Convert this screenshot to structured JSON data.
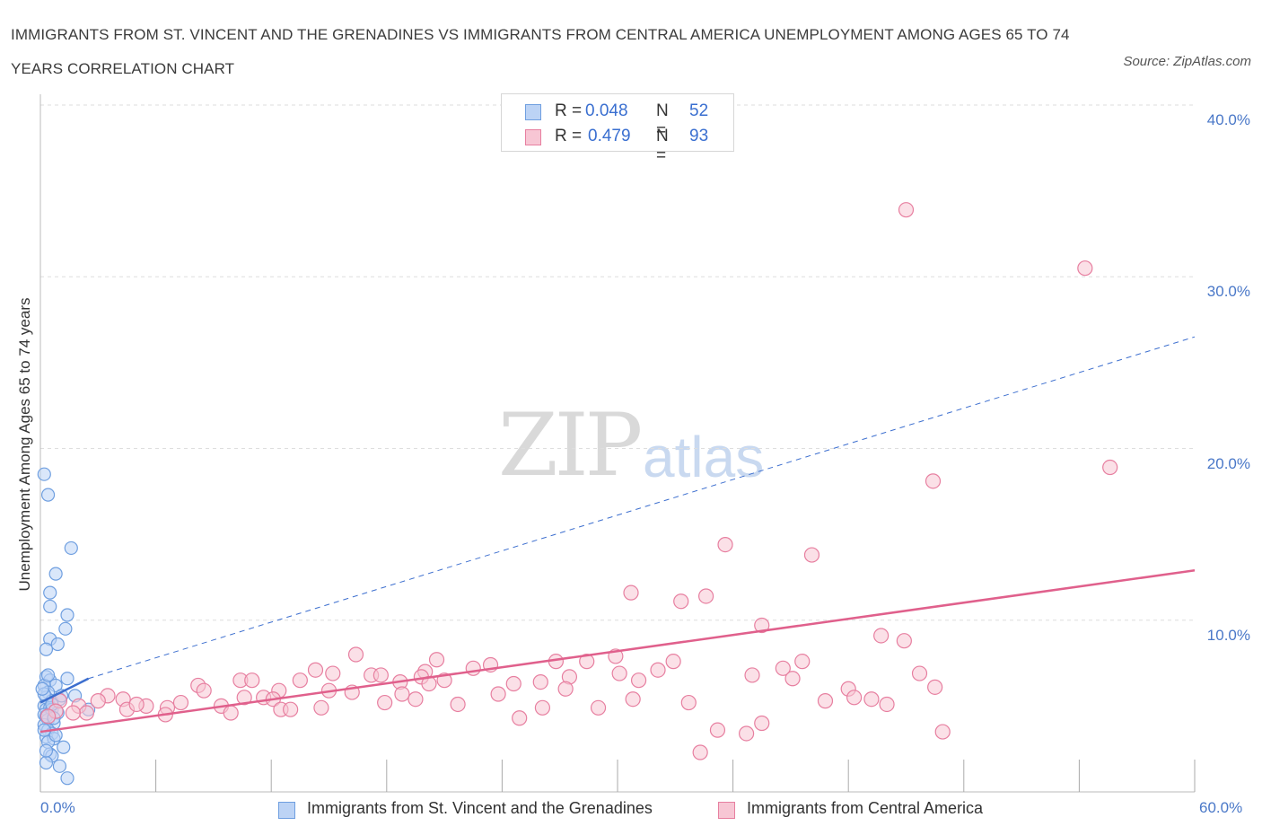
{
  "title": "IMMIGRANTS FROM ST. VINCENT AND THE GRENADINES VS IMMIGRANTS FROM CENTRAL AMERICA UNEMPLOYMENT AMONG AGES 65 TO 74 YEARS CORRELATION CHART",
  "source": "Source: ZipAtlas.com",
  "watermark": {
    "zip": "ZIP",
    "atlas": "atlas"
  },
  "colors": {
    "blue": "#6f9fe0",
    "blue_fill": "#bcd3f5",
    "pink": "#e77fa0",
    "pink_fill": "#f7c6d4",
    "blue_line": "#3d6fcf",
    "pink_line": "#e0608c",
    "grid": "#dedede",
    "tick_text": "#4a78c8"
  },
  "legend_top": [
    {
      "r_label": "R =",
      "r_value": "0.048",
      "n_label": "N =",
      "n_value": "52"
    },
    {
      "r_label": "R =",
      "r_value": "0.479",
      "n_label": "N =",
      "n_value": "93"
    }
  ],
  "legend_bottom": [
    "Immigrants from St. Vincent and the Grenadines",
    "Immigrants from Central America"
  ],
  "chart_data": {
    "type": "scatter",
    "title": "IMMIGRANTS FROM ST. VINCENT AND THE GRENADINES VS IMMIGRANTS FROM CENTRAL AMERICA UNEMPLOYMENT AMONG AGES 65 TO 74 YEARS CORRELATION CHART",
    "ylabel": "Unemployment Among Ages 65 to 74 years",
    "xlabel": "",
    "xlim": [
      0,
      60
    ],
    "ylim": [
      0,
      40
    ],
    "x_tick_labels": [
      "0.0%",
      "60.0%"
    ],
    "y_ticks": [
      10,
      20,
      30,
      40
    ],
    "y_tick_labels": [
      "10.0%",
      "20.0%",
      "30.0%",
      "40.0%"
    ],
    "grid": true,
    "legend_position": "top-center",
    "series": [
      {
        "name": "Immigrants from St. Vincent and the Grenadines",
        "r": 0.048,
        "n": 52,
        "trend": {
          "x": [
            0,
            2.5
          ],
          "y": [
            5.2,
            6.6
          ],
          "extended": {
            "x": [
              2.5,
              60
            ],
            "y": [
              6.6,
              26.5
            ]
          }
        },
        "points": [
          [
            0.2,
            18.5
          ],
          [
            0.4,
            17.3
          ],
          [
            1.6,
            14.2
          ],
          [
            0.8,
            12.7
          ],
          [
            0.5,
            11.6
          ],
          [
            0.5,
            10.8
          ],
          [
            1.4,
            10.3
          ],
          [
            1.3,
            9.5
          ],
          [
            0.5,
            8.9
          ],
          [
            0.9,
            8.6
          ],
          [
            0.3,
            8.3
          ],
          [
            0.3,
            6.7
          ],
          [
            0.5,
            6.5
          ],
          [
            0.8,
            6.2
          ],
          [
            1.4,
            6.6
          ],
          [
            0.2,
            6.2
          ],
          [
            0.4,
            5.8
          ],
          [
            0.3,
            5.5
          ],
          [
            0.6,
            5.3
          ],
          [
            1.0,
            5.4
          ],
          [
            1.8,
            5.6
          ],
          [
            0.2,
            5.0
          ],
          [
            0.3,
            4.8
          ],
          [
            0.5,
            4.9
          ],
          [
            0.2,
            4.5
          ],
          [
            0.6,
            4.8
          ],
          [
            0.9,
            4.6
          ],
          [
            2.5,
            4.8
          ],
          [
            0.4,
            4.2
          ],
          [
            0.7,
            4.0
          ],
          [
            0.2,
            3.9
          ],
          [
            0.4,
            3.6
          ],
          [
            0.6,
            3.4
          ],
          [
            0.3,
            3.2
          ],
          [
            0.7,
            3.1
          ],
          [
            0.4,
            2.9
          ],
          [
            1.2,
            2.6
          ],
          [
            0.5,
            2.2
          ],
          [
            0.6,
            2.1
          ],
          [
            0.3,
            1.7
          ],
          [
            1.0,
            1.5
          ],
          [
            1.4,
            0.8
          ],
          [
            0.2,
            5.7
          ],
          [
            0.1,
            6.0
          ],
          [
            0.8,
            3.3
          ],
          [
            0.3,
            4.4
          ],
          [
            0.6,
            5.1
          ],
          [
            0.2,
            3.6
          ],
          [
            1.1,
            5.6
          ],
          [
            0.4,
            6.8
          ],
          [
            0.7,
            4.3
          ],
          [
            0.3,
            2.4
          ]
        ]
      },
      {
        "name": "Immigrants from Central America",
        "r": 0.479,
        "n": 93,
        "trend": {
          "x": [
            0,
            60
          ],
          "y": [
            3.5,
            12.9
          ]
        },
        "points": [
          [
            45,
            33.9
          ],
          [
            54.3,
            30.5
          ],
          [
            55.6,
            18.9
          ],
          [
            46.4,
            18.1
          ],
          [
            35.6,
            14.4
          ],
          [
            40.1,
            13.8
          ],
          [
            30.7,
            11.6
          ],
          [
            34.6,
            11.4
          ],
          [
            33.3,
            11.1
          ],
          [
            37.5,
            9.7
          ],
          [
            43.7,
            9.1
          ],
          [
            44.9,
            8.8
          ],
          [
            16.4,
            8.0
          ],
          [
            29.9,
            7.9
          ],
          [
            20.6,
            7.7
          ],
          [
            26.8,
            7.6
          ],
          [
            28.4,
            7.6
          ],
          [
            32.9,
            7.6
          ],
          [
            39.6,
            7.6
          ],
          [
            23.4,
            7.4
          ],
          [
            14.3,
            7.1
          ],
          [
            20.0,
            7.0
          ],
          [
            22.5,
            7.2
          ],
          [
            38.6,
            7.2
          ],
          [
            15.2,
            6.9
          ],
          [
            17.2,
            6.8
          ],
          [
            17.7,
            6.8
          ],
          [
            19.8,
            6.7
          ],
          [
            30.1,
            6.9
          ],
          [
            37.0,
            6.8
          ],
          [
            45.7,
            6.9
          ],
          [
            32.1,
            7.1
          ],
          [
            27.5,
            6.7
          ],
          [
            13.5,
            6.5
          ],
          [
            10.4,
            6.5
          ],
          [
            11.0,
            6.5
          ],
          [
            18.7,
            6.4
          ],
          [
            21.0,
            6.5
          ],
          [
            26.0,
            6.4
          ],
          [
            31.1,
            6.5
          ],
          [
            39.1,
            6.6
          ],
          [
            20.2,
            6.3
          ],
          [
            24.6,
            6.3
          ],
          [
            8.2,
            6.2
          ],
          [
            8.5,
            5.9
          ],
          [
            12.4,
            5.9
          ],
          [
            15.0,
            5.9
          ],
          [
            16.2,
            5.8
          ],
          [
            3.5,
            5.6
          ],
          [
            4.3,
            5.4
          ],
          [
            10.6,
            5.5
          ],
          [
            11.6,
            5.5
          ],
          [
            12.1,
            5.4
          ],
          [
            18.8,
            5.7
          ],
          [
            23.8,
            5.7
          ],
          [
            42.0,
            6.0
          ],
          [
            46.5,
            6.1
          ],
          [
            43.2,
            5.4
          ],
          [
            1.0,
            5.3
          ],
          [
            3.0,
            5.3
          ],
          [
            5.5,
            5.0
          ],
          [
            7.3,
            5.2
          ],
          [
            30.8,
            5.4
          ],
          [
            33.7,
            5.2
          ],
          [
            2.0,
            5.0
          ],
          [
            4.5,
            4.8
          ],
          [
            6.6,
            4.9
          ],
          [
            9.4,
            5.0
          ],
          [
            12.5,
            4.8
          ],
          [
            17.9,
            5.2
          ],
          [
            26.1,
            4.9
          ],
          [
            29.0,
            4.9
          ],
          [
            40.8,
            5.3
          ],
          [
            42.3,
            5.5
          ],
          [
            44.0,
            5.1
          ],
          [
            0.8,
            4.7
          ],
          [
            2.4,
            4.6
          ],
          [
            6.5,
            4.5
          ],
          [
            9.9,
            4.6
          ],
          [
            13.0,
            4.8
          ],
          [
            0.4,
            4.4
          ],
          [
            1.7,
            4.6
          ],
          [
            24.9,
            4.3
          ],
          [
            35.2,
            3.6
          ],
          [
            36.7,
            3.4
          ],
          [
            37.5,
            4.0
          ],
          [
            46.9,
            3.5
          ],
          [
            34.3,
            2.3
          ],
          [
            14.6,
            4.9
          ],
          [
            5.0,
            5.1
          ],
          [
            27.3,
            6.0
          ],
          [
            21.7,
            5.1
          ],
          [
            19.5,
            5.4
          ]
        ]
      }
    ]
  }
}
